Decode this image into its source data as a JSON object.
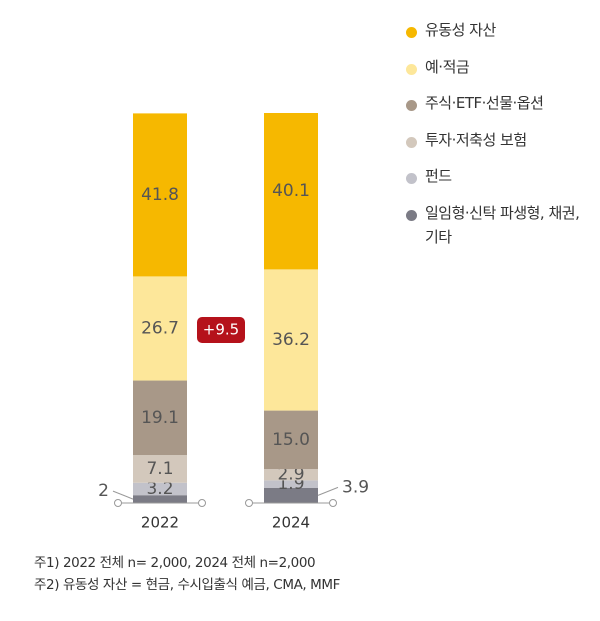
{
  "chart_data": {
    "type": "stacked-bar",
    "categories": [
      "2022",
      "2024"
    ],
    "series": [
      {
        "name": "유동성 자산",
        "color": "#f6b800",
        "values": [
          41.8,
          40.1
        ]
      },
      {
        "name": "예·적금",
        "color": "#fde79a",
        "values": [
          26.7,
          36.2
        ]
      },
      {
        "name": "주식·ETF·선물·옵션",
        "color": "#a89888",
        "values": [
          19.1,
          15.0
        ],
        "value_labels": [
          "19.1",
          "15.0"
        ]
      },
      {
        "name": "투자·저축성 보험",
        "color": "#d3c8bc",
        "values": [
          7.1,
          2.9
        ]
      },
      {
        "name": "펀드",
        "color": "#c2c2ca",
        "values": [
          3.2,
          1.9
        ]
      },
      {
        "name": "일임형·신탁 파생형, 채권, 기타",
        "color": "#7b7b85",
        "values": [
          2.0,
          3.9
        ]
      }
    ],
    "annotation": "+9.5",
    "notes": [
      "주1) 2022 전체 n= 2,000, 2024 전체 n=2,000",
      "주2) 유동성 자산 = 현금, 수시입출식 예금, CMA, MMF"
    ]
  }
}
